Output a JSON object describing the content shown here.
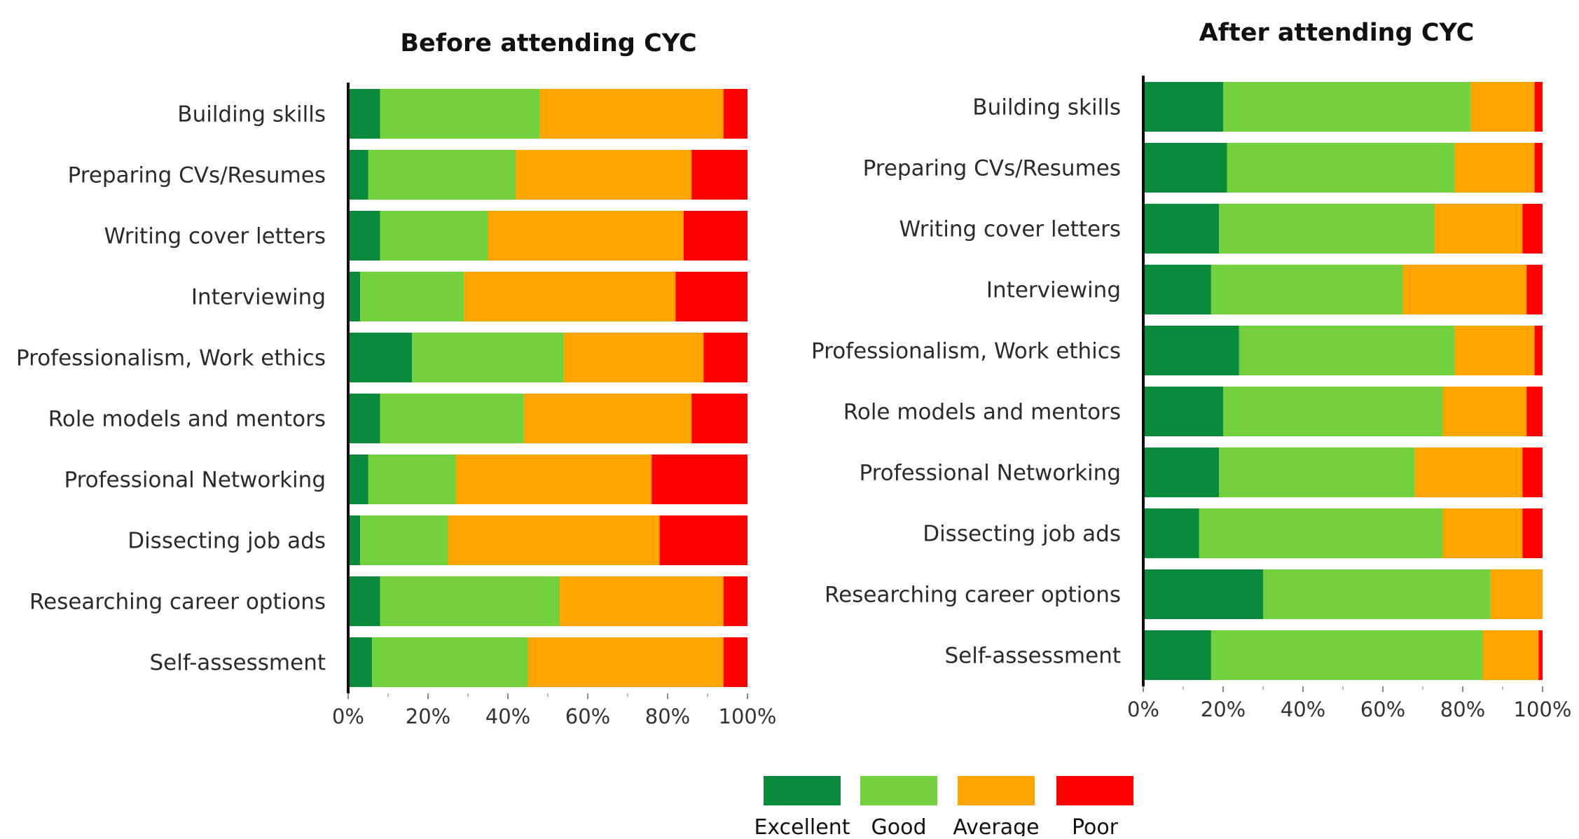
{
  "legend": [
    {
      "label": "Excellent",
      "color": "#0a8a3c"
    },
    {
      "label": "Good",
      "color": "#72d13c"
    },
    {
      "label": "Average",
      "color": "#ffa500"
    },
    {
      "label": "Poor",
      "color": "#ff0000"
    }
  ],
  "chart_data": [
    {
      "type": "bar",
      "orientation": "horizontal",
      "stacked": "percent",
      "title": "Before attending CYC",
      "categories": [
        "Building skills",
        "Preparing CVs/Resumes",
        "Writing cover letters",
        "Interviewing",
        "Professionalism, Work ethics",
        "Role models and mentors",
        "Professional Networking",
        "Dissecting job ads",
        "Researching career options",
        "Self-assessment"
      ],
      "series": [
        {
          "name": "Excellent",
          "values": [
            8,
            5,
            8,
            3,
            16,
            8,
            5,
            3,
            8,
            6
          ]
        },
        {
          "name": "Good",
          "values": [
            40,
            37,
            27,
            26,
            38,
            36,
            22,
            22,
            45,
            39
          ]
        },
        {
          "name": "Average",
          "values": [
            46,
            44,
            49,
            53,
            35,
            42,
            49,
            53,
            41,
            49
          ]
        },
        {
          "name": "Poor",
          "values": [
            6,
            14,
            16,
            18,
            11,
            14,
            24,
            22,
            6,
            6
          ]
        }
      ],
      "xlim": [
        0,
        100
      ],
      "xticks": [
        "0%",
        "20%",
        "40%",
        "60%",
        "80%",
        "100%"
      ],
      "grid": false
    },
    {
      "type": "bar",
      "orientation": "horizontal",
      "stacked": "percent",
      "title": "After attending CYC",
      "categories": [
        "Building skills",
        "Preparing CVs/Resumes",
        "Writing cover letters",
        "Interviewing",
        "Professionalism, Work ethics",
        "Role models and mentors",
        "Professional Networking",
        "Dissecting job ads",
        "Researching career options",
        "Self-assessment"
      ],
      "series": [
        {
          "name": "Excellent",
          "values": [
            20,
            21,
            19,
            17,
            24,
            20,
            19,
            14,
            30,
            17
          ]
        },
        {
          "name": "Good",
          "values": [
            62,
            57,
            54,
            48,
            54,
            55,
            49,
            61,
            57,
            68
          ]
        },
        {
          "name": "Average",
          "values": [
            16,
            20,
            22,
            31,
            20,
            21,
            27,
            20,
            13,
            14
          ]
        },
        {
          "name": "Poor",
          "values": [
            2,
            2,
            5,
            4,
            2,
            4,
            5,
            5,
            0,
            1
          ]
        }
      ],
      "xlim": [
        0,
        100
      ],
      "xticks": [
        "0%",
        "20%",
        "40%",
        "60%",
        "80%",
        "100%"
      ],
      "grid": false
    }
  ]
}
